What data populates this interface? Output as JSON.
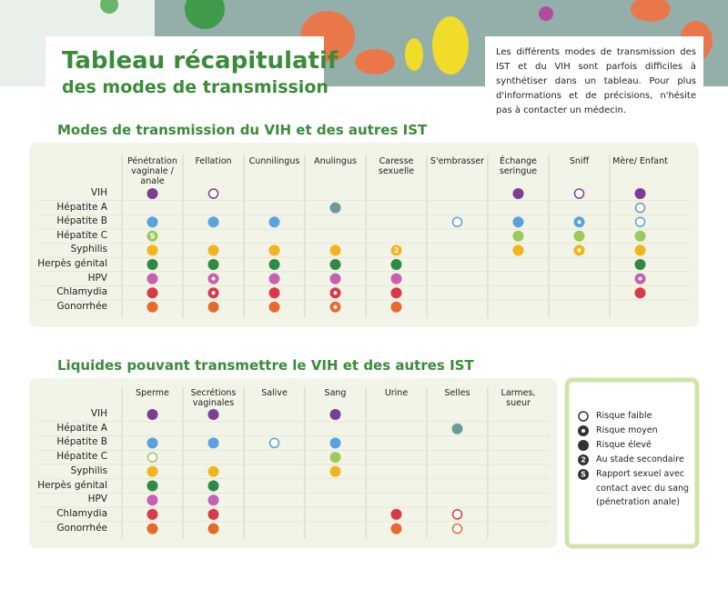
{
  "header": {
    "title_line1": "Tableau récapitulatif",
    "title_line2": "des modes de transmission",
    "intro": "Les différents modes de transmission des IST et du VIH sont parfois difficiles à synthétiser dans un tableau. Pour plus d'informations et de précisions, n'hésite pas à contacter un médecin."
  },
  "legend": {
    "items": [
      {
        "label": "Risque faible"
      },
      {
        "label": "Risque moyen"
      },
      {
        "label": "Risque élevé"
      },
      {
        "label": "Au stade secondaire",
        "symbol": "2"
      },
      {
        "label": "Rapport sexuel avec contact avec du sang (pénetration anale)",
        "symbol": "S"
      }
    ]
  },
  "tables": [
    {
      "title": "Modes de transmission du VIH et des autres IST",
      "columns": [
        "Pénétration vaginale / anale",
        "Fellation",
        "Cunnilingus",
        "Anulingus",
        "Caresse sexuelle",
        "S'embrasser",
        "Échange seringue",
        "Sniff",
        "Mère/ Enfant"
      ],
      "rows": [
        {
          "label": "VIH",
          "color": "#7a3e96",
          "cells": [
            "Risque élevé",
            "Risque faible",
            null,
            null,
            null,
            null,
            "Risque élevé",
            "Risque faible",
            "Risque élevé"
          ]
        },
        {
          "label": "Hépatite A",
          "color": "#6b9b97",
          "cells": [
            null,
            null,
            null,
            "Risque élevé",
            null,
            null,
            null,
            null,
            "Risque faible"
          ]
        },
        {
          "label": "Hépatite B",
          "color": "#5aa2df",
          "cells": [
            "Risque élevé",
            "Risque élevé",
            "Risque élevé",
            null,
            null,
            "Risque faible",
            "Risque élevé",
            "Risque moyen",
            "Risque faible"
          ]
        },
        {
          "label": "Hépatite C",
          "color": "#9cc95b",
          "cells": [
            "Rapport sexuel avec contact avec du sang (pénetration anale)",
            null,
            null,
            null,
            null,
            null,
            "Risque élevé",
            "Risque élevé",
            "Risque élevé"
          ]
        },
        {
          "label": "Syphilis",
          "color": "#f1b41d",
          "cells": [
            "Risque élevé",
            "Risque élevé",
            "Risque élevé",
            "Risque élevé",
            "Au stade secondaire",
            null,
            "Risque élevé",
            "Risque moyen",
            "Risque élevé"
          ]
        },
        {
          "label": "Herpès génital",
          "color": "#2e8a45",
          "cells": [
            "Risque élevé",
            "Risque élevé",
            "Risque élevé",
            "Risque élevé",
            "Risque élevé",
            null,
            null,
            null,
            "Risque élevé"
          ]
        },
        {
          "label": "HPV",
          "color": "#c760b0",
          "cells": [
            "Risque élevé",
            "Risque moyen",
            "Risque élevé",
            "Risque élevé",
            "Risque élevé",
            null,
            null,
            null,
            "Risque moyen"
          ]
        },
        {
          "label": "Chlamydia",
          "color": "#d83a4a",
          "cells": [
            "Risque élevé",
            "Risque moyen",
            "Risque élevé",
            "Risque moyen",
            "Risque élevé",
            null,
            null,
            null,
            "Risque élevé"
          ]
        },
        {
          "label": "Gonorrhée",
          "color": "#e56a2e",
          "cells": [
            "Risque élevé",
            "Risque élevé",
            "Risque élevé",
            "Risque moyen",
            "Risque élevé",
            null,
            null,
            null,
            null
          ]
        }
      ]
    },
    {
      "title": "Liquides pouvant transmettre le VIH et des autres IST",
      "columns": [
        "Sperme",
        "Secrétions vaginales",
        "Salive",
        "Sang",
        "Urine",
        "Selles",
        "Larmes, sueur"
      ],
      "rows": [
        {
          "label": "VIH",
          "color": "#7a3e96",
          "cells": [
            "Risque élevé",
            "Risque élevé",
            null,
            "Risque élevé",
            null,
            null,
            null
          ]
        },
        {
          "label": "Hépatite A",
          "color": "#6b9b97",
          "cells": [
            null,
            null,
            null,
            null,
            null,
            "Risque élevé",
            null
          ]
        },
        {
          "label": "Hépatite B",
          "color": "#5aa2df",
          "cells": [
            "Risque élevé",
            "Risque élevé",
            "Risque faible",
            "Risque élevé",
            null,
            null,
            null
          ]
        },
        {
          "label": "Hépatite C",
          "color": "#9cc95b",
          "cells": [
            "Risque faible",
            null,
            null,
            "Risque élevé",
            null,
            null,
            null
          ]
        },
        {
          "label": "Syphilis",
          "color": "#f1b41d",
          "cells": [
            "Risque élevé",
            "Risque élevé",
            null,
            "Risque élevé",
            null,
            null,
            null
          ]
        },
        {
          "label": "Herpès génital",
          "color": "#2e8a45",
          "cells": [
            "Risque élevé",
            "Risque élevé",
            null,
            null,
            null,
            null,
            null
          ]
        },
        {
          "label": "HPV",
          "color": "#c760b0",
          "cells": [
            "Risque élevé",
            "Risque élevé",
            null,
            null,
            null,
            null,
            null
          ]
        },
        {
          "label": "Chlamydia",
          "color": "#d83a4a",
          "cells": [
            "Risque élevé",
            "Risque élevé",
            null,
            null,
            "Risque élevé",
            "Risque faible",
            null
          ]
        },
        {
          "label": "Gonorrhée",
          "color": "#e56a2e",
          "cells": [
            "Risque élevé",
            "Risque élevé",
            null,
            null,
            "Risque élevé",
            "Risque faible",
            null
          ]
        }
      ]
    }
  ]
}
